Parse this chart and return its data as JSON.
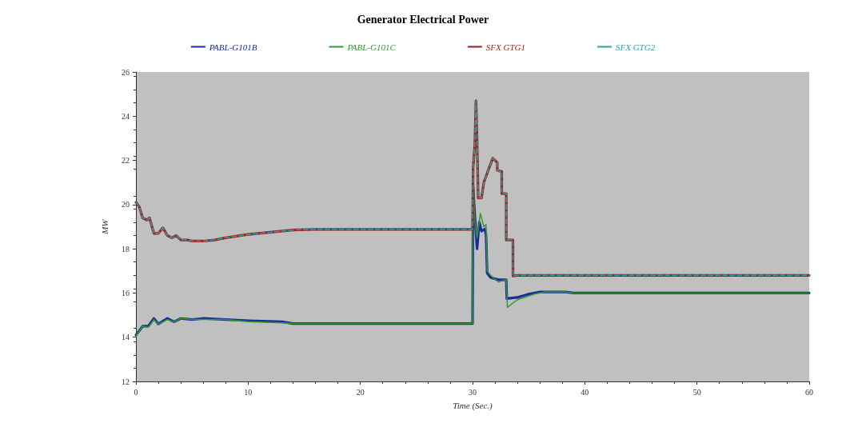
{
  "chart_data": {
    "type": "line",
    "title": "Generator Electrical Power",
    "xlabel": "Time (Sec.)",
    "ylabel": "MW",
    "xlim": [
      0,
      60
    ],
    "xticks": [
      0,
      10,
      20,
      30,
      40,
      50,
      60
    ],
    "ylim": [
      12,
      26
    ],
    "yticks": [
      12,
      14,
      16,
      18,
      20,
      22,
      24,
      26
    ],
    "grid": false,
    "legend": "top",
    "marker": "none",
    "series": [
      {
        "name": "PABL-G101B",
        "color": "#1c2a9c",
        "line_style": "solid",
        "x": [
          0,
          0.3,
          0.6,
          1.1,
          1.6,
          2,
          2.8,
          3.4,
          4,
          5,
          6,
          8,
          10,
          13,
          14,
          30,
          30.05,
          30.2,
          30.4,
          30.6,
          30.8,
          31.1,
          31.2,
          31.3,
          31.6,
          32.3,
          33,
          33.05,
          34,
          35,
          36,
          38.3,
          39,
          60
        ],
        "values": [
          14.1,
          14.3,
          14.5,
          14.5,
          14.85,
          14.6,
          14.85,
          14.7,
          14.85,
          14.8,
          14.85,
          14.8,
          14.75,
          14.7,
          14.62,
          14.62,
          20.8,
          19.5,
          18,
          19.2,
          18.8,
          18.9,
          18.6,
          16.9,
          16.7,
          16.6,
          16.6,
          15.75,
          15.8,
          15.95,
          16.05,
          16.05,
          16,
          16
        ]
      },
      {
        "name": "PABL-G101C",
        "color": "#2e9a2e",
        "line_style": "solid",
        "x": [
          0,
          0.3,
          0.6,
          1.1,
          1.6,
          2,
          2.8,
          3.4,
          4,
          5,
          6,
          8,
          10,
          13,
          14,
          30,
          30.05,
          30.2,
          30.4,
          30.7,
          31,
          31.2,
          31.3,
          31.6,
          32.3,
          33,
          33.1,
          34,
          35.5,
          36.5,
          38.3,
          39,
          60
        ],
        "values": [
          14.05,
          14.3,
          14.5,
          14.45,
          14.8,
          14.6,
          14.8,
          14.7,
          14.85,
          14.8,
          14.8,
          14.8,
          14.7,
          14.65,
          14.62,
          14.62,
          21.5,
          19.2,
          18.5,
          19.6,
          19,
          19.1,
          17,
          16.8,
          16.5,
          16.6,
          15.35,
          15.7,
          15.95,
          16.05,
          16.05,
          16,
          16
        ]
      },
      {
        "name": "SFX GTG1",
        "color": "#9b1c1c",
        "line_style": "solid",
        "x": [
          0,
          0.3,
          0.6,
          1,
          1.2,
          1.6,
          2,
          2.4,
          2.8,
          3.2,
          3.6,
          4,
          4.6,
          5,
          6,
          7,
          8,
          10,
          12,
          14,
          16,
          30,
          30.05,
          30.2,
          30.3,
          30.4,
          30.5,
          30.8,
          31,
          31.5,
          31.8,
          32.2,
          32.2,
          32.6,
          32.6,
          33,
          33,
          33.6,
          33.6,
          34,
          60
        ],
        "values": [
          20.1,
          19.9,
          19.4,
          19.3,
          19.4,
          18.7,
          18.7,
          18.95,
          18.6,
          18.5,
          18.6,
          18.4,
          18.4,
          18.35,
          18.35,
          18.4,
          18.5,
          18.65,
          18.75,
          18.85,
          18.88,
          18.88,
          21.7,
          22.7,
          24.7,
          23,
          20.3,
          20.3,
          21,
          21.7,
          22.1,
          21.9,
          21.55,
          21.5,
          20.5,
          20.5,
          18.4,
          18.4,
          16.77,
          16.8,
          16.8
        ]
      },
      {
        "name": "SFX GTG2",
        "color": "#2aa5a5",
        "line_style": "dashed",
        "x": [
          0,
          0.3,
          0.6,
          1,
          1.2,
          1.6,
          2,
          2.4,
          2.8,
          3.2,
          3.6,
          4,
          4.6,
          5,
          6,
          7,
          8,
          10,
          12,
          14,
          16,
          30,
          30.05,
          30.2,
          30.3,
          30.4,
          30.5,
          30.8,
          31,
          31.5,
          31.8,
          32.2,
          32.2,
          32.6,
          32.6,
          33,
          33,
          33.6,
          33.6,
          34,
          60
        ],
        "values": [
          20.1,
          19.9,
          19.4,
          19.3,
          19.4,
          18.7,
          18.7,
          18.95,
          18.6,
          18.5,
          18.6,
          18.4,
          18.4,
          18.35,
          18.35,
          18.4,
          18.5,
          18.65,
          18.75,
          18.85,
          18.88,
          18.88,
          21.7,
          22.7,
          24.7,
          23,
          20.3,
          20.3,
          21,
          21.7,
          22.1,
          21.9,
          21.55,
          21.5,
          20.5,
          20.5,
          18.4,
          18.4,
          16.77,
          16.8,
          16.8
        ]
      }
    ]
  }
}
